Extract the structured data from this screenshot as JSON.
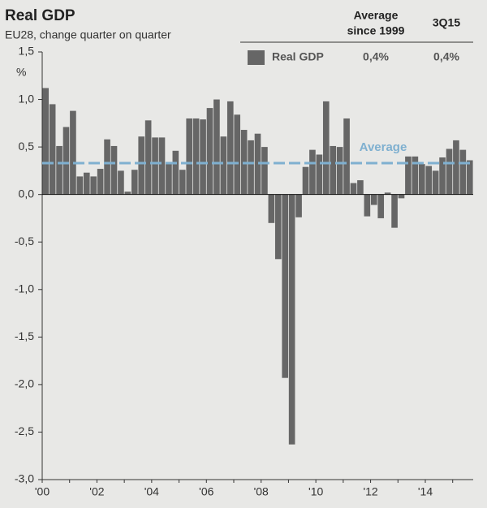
{
  "chart_data": {
    "type": "bar",
    "title": "Real GDP",
    "subtitle": "EU28, change quarter on quarter",
    "y_label": "%",
    "legend_table": {
      "columns": [
        [
          "Average",
          "since 1999"
        ],
        [
          "3Q15"
        ]
      ],
      "values": [
        "0,4%",
        "0,4%"
      ]
    },
    "categories": [
      "'00",
      null,
      null,
      null,
      null,
      null,
      null,
      null,
      "'02",
      null,
      null,
      null,
      null,
      null,
      null,
      null,
      "'04",
      null,
      null,
      null,
      null,
      null,
      null,
      null,
      "'06",
      null,
      null,
      null,
      null,
      null,
      null,
      null,
      "'08",
      null,
      null,
      null,
      null,
      null,
      null,
      null,
      "'10",
      null,
      null,
      null,
      null,
      null,
      null,
      null,
      "'12",
      null,
      null,
      null,
      null,
      null,
      null,
      null,
      "'14",
      null,
      null,
      null,
      null,
      null,
      null
    ],
    "series": [
      {
        "name": "Real GDP",
        "color": "#666666",
        "values": [
          1.12,
          0.95,
          0.51,
          0.71,
          0.88,
          0.19,
          0.23,
          0.19,
          0.27,
          0.58,
          0.51,
          0.25,
          0.03,
          0.26,
          0.61,
          0.78,
          0.6,
          0.6,
          0.33,
          0.46,
          0.26,
          0.8,
          0.8,
          0.79,
          0.91,
          1.0,
          0.61,
          0.98,
          0.84,
          0.68,
          0.57,
          0.64,
          0.5,
          -0.3,
          -0.68,
          -1.93,
          -2.63,
          -0.24,
          0.29,
          0.47,
          0.42,
          0.98,
          0.51,
          0.5,
          0.8,
          0.12,
          0.15,
          -0.23,
          -0.11,
          -0.25,
          0.02,
          -0.35,
          -0.04,
          0.4,
          0.4,
          0.32,
          0.3,
          0.25,
          0.39,
          0.48,
          0.57,
          0.47,
          0.36
        ]
      }
    ],
    "average_line": {
      "value": 0.33,
      "label": "Average",
      "color": "#7fb0d0"
    },
    "ylim": [
      -3.0,
      1.5
    ],
    "yticks": [
      {
        "value": 1.5,
        "label": "1,5"
      },
      {
        "value": 1.0,
        "label": "1,0"
      },
      {
        "value": 0.5,
        "label": "0,5"
      },
      {
        "value": 0.0,
        "label": "0,0"
      },
      {
        "value": -0.5,
        "label": "-0,5"
      },
      {
        "value": -1.0,
        "label": "-1,0"
      },
      {
        "value": -1.5,
        "label": "-1,5"
      },
      {
        "value": -2.0,
        "label": "-2,0"
      },
      {
        "value": -2.5,
        "label": "-2,5"
      },
      {
        "value": -3.0,
        "label": "-3,0"
      }
    ]
  }
}
